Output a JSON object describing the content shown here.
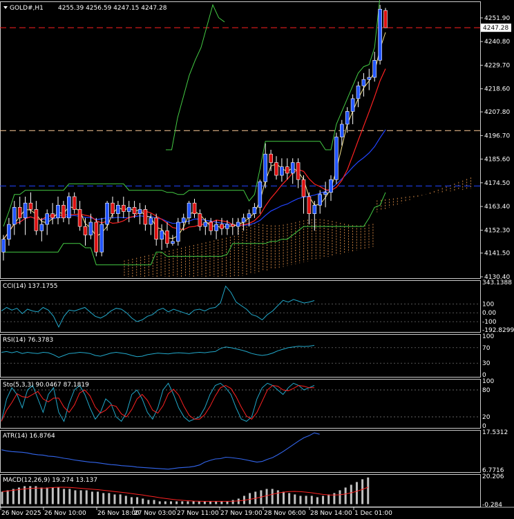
{
  "header": {
    "symbol": "GOLD#,H1",
    "ohlc": "4255.39 4256.59 4247.15 4247.28"
  },
  "current_price_label": "4247.28",
  "colors": {
    "background": "#000000",
    "grid": "#ffffff",
    "bull": "#2255ff",
    "bear": "#dd1111",
    "ma_fast": "#f5e28a",
    "ma_mid": "#ff2222",
    "ma_slow": "#2244ff",
    "envelope": "#44cc44",
    "cloud": "#c88040",
    "osc": "#22aacc",
    "stoch_signal": "#ff2222",
    "macd_hist": "#c0c0c0",
    "macd_signal": "#ff2222",
    "atr": "#3366ee"
  },
  "chart_data": [
    {
      "type": "candlestick",
      "title": "GOLD#,H1",
      "ylim": [
        4130.4,
        4259.0
      ],
      "y_ticks": [
        "4251.90",
        "4240.80",
        "4229.70",
        "4218.60",
        "4207.80",
        "4196.70",
        "4185.60",
        "4174.50",
        "4163.40",
        "4152.30",
        "4141.50",
        "4130.40"
      ],
      "x_ticks": [
        "26 Nov 2025",
        "26 Nov 10:00",
        "26 Nov 18:00",
        "27 Nov 03:00",
        "27 Nov 11:00",
        "27 Nov 19:00",
        "28 Nov 06:00",
        "28 Nov 14:00",
        "1 Dec 01:00"
      ],
      "horizontal_lines": [
        {
          "name": "current",
          "value": 4247.28,
          "style": "dashed",
          "color": "#ff2222"
        },
        {
          "name": "level-1",
          "value": 4199.0,
          "style": "dashed",
          "color": "#ffcc99"
        },
        {
          "name": "level-2",
          "value": 4173.0,
          "style": "dashed",
          "color": "#2244ff"
        }
      ],
      "candles": [
        [
          4142,
          4150,
          4138,
          4148
        ],
        [
          4148,
          4158,
          4145,
          4155
        ],
        [
          4155,
          4166,
          4150,
          4163
        ],
        [
          4163,
          4168,
          4155,
          4158
        ],
        [
          4158,
          4168,
          4150,
          4165
        ],
        [
          4165,
          4170,
          4160,
          4162
        ],
        [
          4162,
          4166,
          4150,
          4152
        ],
        [
          4152,
          4158,
          4147,
          4155
        ],
        [
          4155,
          4162,
          4150,
          4160
        ],
        [
          4160,
          4165,
          4155,
          4158
        ],
        [
          4158,
          4168,
          4155,
          4164
        ],
        [
          4164,
          4166,
          4156,
          4158
        ],
        [
          4158,
          4170,
          4155,
          4168
        ],
        [
          4168,
          4170,
          4160,
          4162
        ],
        [
          4162,
          4166,
          4152,
          4154
        ],
        [
          4154,
          4158,
          4145,
          4150
        ],
        [
          4150,
          4160,
          4148,
          4156
        ],
        [
          4156,
          4158,
          4140,
          4142
        ],
        [
          4142,
          4158,
          4140,
          4155
        ],
        [
          4155,
          4166,
          4152,
          4165
        ],
        [
          4165,
          4168,
          4158,
          4160
        ],
        [
          4160,
          4166,
          4156,
          4164
        ],
        [
          4164,
          4168,
          4158,
          4161
        ],
        [
          4161,
          4166,
          4156,
          4163
        ],
        [
          4163,
          4166,
          4158,
          4160
        ],
        [
          4160,
          4165,
          4155,
          4162
        ],
        [
          4162,
          4164,
          4152,
          4155
        ],
        [
          4155,
          4160,
          4150,
          4158
        ],
        [
          4158,
          4160,
          4145,
          4148
        ],
        [
          4148,
          4155,
          4143,
          4152
        ],
        [
          4152,
          4156,
          4144,
          4146
        ],
        [
          4146,
          4150,
          4145,
          4147
        ],
        [
          4147,
          4158,
          4145,
          4156
        ],
        [
          4156,
          4160,
          4152,
          4158
        ],
        [
          4158,
          4166,
          4155,
          4165
        ],
        [
          4165,
          4167,
          4158,
          4160
        ],
        [
          4160,
          4162,
          4152,
          4154
        ],
        [
          4154,
          4158,
          4150,
          4156
        ],
        [
          4156,
          4158,
          4150,
          4152
        ],
        [
          4152,
          4157,
          4148,
          4155
        ],
        [
          4155,
          4158,
          4150,
          4153
        ],
        [
          4153,
          4157,
          4150,
          4155
        ],
        [
          4155,
          4158,
          4150,
          4154
        ],
        [
          4154,
          4158,
          4150,
          4156
        ],
        [
          4156,
          4160,
          4152,
          4158
        ],
        [
          4158,
          4162,
          4154,
          4160
        ],
        [
          4160,
          4165,
          4158,
          4163
        ],
        [
          4163,
          4176,
          4160,
          4175
        ],
        [
          4175,
          4193,
          4172,
          4188
        ],
        [
          4188,
          4190,
          4180,
          4184
        ],
        [
          4184,
          4187,
          4176,
          4178
        ],
        [
          4178,
          4186,
          4175,
          4182
        ],
        [
          4182,
          4186,
          4176,
          4179
        ],
        [
          4179,
          4186,
          4174,
          4184
        ],
        [
          4184,
          4186,
          4172,
          4176
        ],
        [
          4176,
          4178,
          4160,
          4168
        ],
        [
          4168,
          4170,
          4155,
          4160
        ],
        [
          4160,
          4166,
          4152,
          4164
        ],
        [
          4164,
          4171,
          4160,
          4169
        ],
        [
          4169,
          4175,
          4163,
          4170
        ],
        [
          4170,
          4178,
          4166,
          4176
        ],
        [
          4176,
          4198,
          4174,
          4196
        ],
        [
          4196,
          4204,
          4192,
          4202
        ],
        [
          4202,
          4210,
          4198,
          4208
        ],
        [
          4208,
          4216,
          4202,
          4214
        ],
        [
          4214,
          4222,
          4210,
          4220
        ],
        [
          4220,
          4226,
          4215,
          4223
        ],
        [
          4223,
          4228,
          4218,
          4224
        ],
        [
          4224,
          4236,
          4222,
          4232
        ],
        [
          4232,
          4258,
          4230,
          4256
        ],
        [
          4255.39,
          4256.59,
          4247.15,
          4247.28
        ]
      ]
    },
    {
      "type": "line",
      "title": "CCI(14) 137.1755",
      "ylim": [
        -192.8299,
        343.1388
      ],
      "y_ticks": [
        "343.1388",
        "100",
        "0.00",
        "-100",
        "-192.8299"
      ]
    },
    {
      "type": "line",
      "title": "RSI(14) 76.3783",
      "ylim": [
        0,
        100
      ],
      "y_ticks": [
        "100",
        "70",
        "30",
        "0"
      ]
    },
    {
      "type": "line",
      "title": "Sto(5,3,3) 90.0467 87.1819",
      "ylim": [
        0,
        100
      ],
      "y_ticks": [
        "100",
        "80",
        "20",
        "0"
      ]
    },
    {
      "type": "line",
      "title": "ATR(14) 16.8764",
      "ylim": [
        6.7716,
        17.5312
      ],
      "y_ticks": [
        "17.5312",
        "6.7716"
      ]
    },
    {
      "type": "bar",
      "title": "MACD(12,26,9) 19.274 13.137",
      "ylim": [
        -0.284,
        20.206
      ],
      "y_ticks": [
        "20.206",
        "-0.284"
      ]
    }
  ]
}
